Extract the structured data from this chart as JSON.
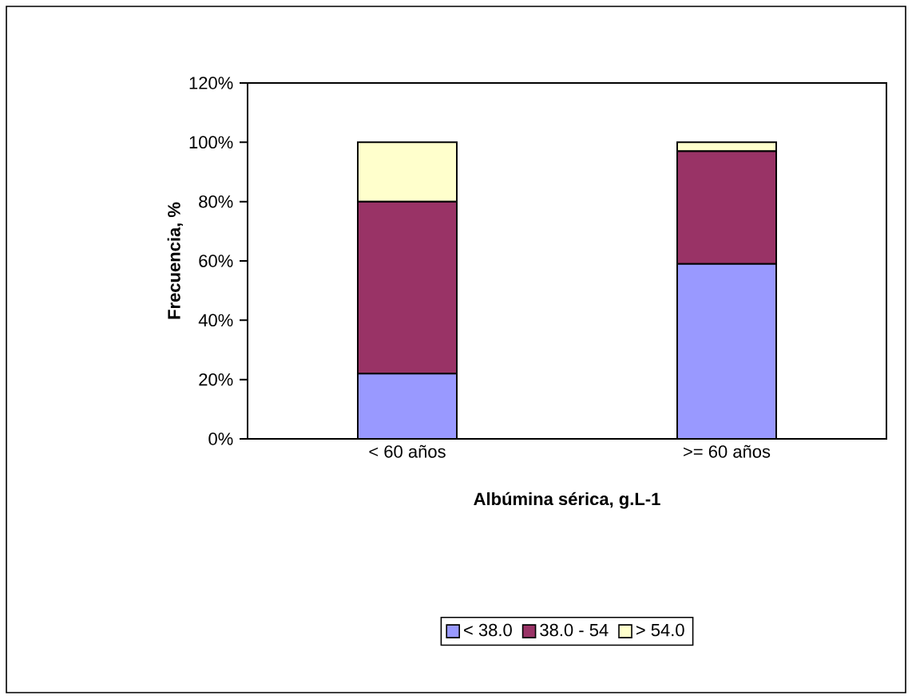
{
  "chart_data": {
    "type": "bar",
    "stacked": true,
    "xlabel": "Albúmina sérica, g.L-1",
    "ylabel": "Frecuencia, %",
    "categories": [
      "< 60 años",
      ">= 60 años"
    ],
    "series": [
      {
        "name": "< 38.0",
        "color": "#9999ff",
        "values": [
          22,
          59
        ]
      },
      {
        "name": "38.0 - 54",
        "color": "#993366",
        "values": [
          58,
          38
        ]
      },
      {
        "name": "> 54.0",
        "color": "#ffffcc",
        "values": [
          20,
          3
        ]
      }
    ],
    "ylim": [
      0,
      120
    ],
    "yticks": [
      {
        "value": 0,
        "label": "0%"
      },
      {
        "value": 20,
        "label": "20%"
      },
      {
        "value": 40,
        "label": "40%"
      },
      {
        "value": 60,
        "label": "60%"
      },
      {
        "value": 80,
        "label": "80%"
      },
      {
        "value": 100,
        "label": "100%"
      },
      {
        "value": 120,
        "label": "120%"
      }
    ],
    "legend": "bottom",
    "grid": false
  }
}
